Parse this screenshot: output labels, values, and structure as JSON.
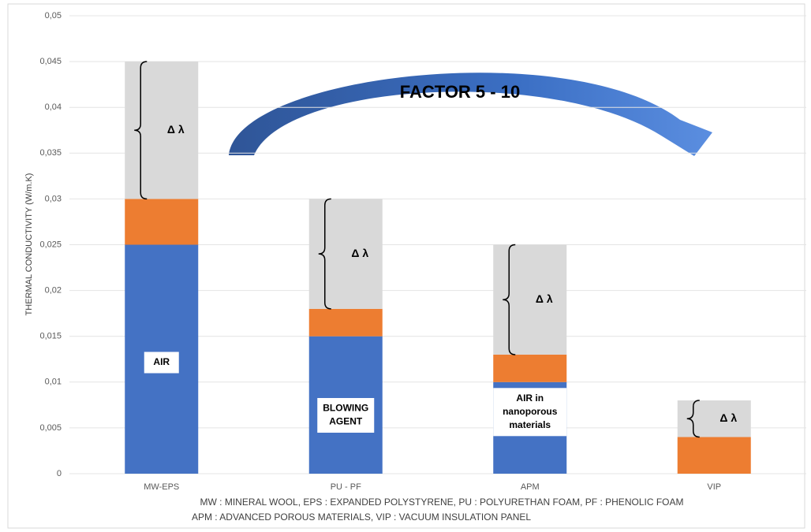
{
  "chart_data": {
    "type": "stacked_bar",
    "y_label": "THERMAL CONDUCTIVITY (W/m.K)",
    "categories": [
      "MW-EPS",
      "PU - PF",
      "APM",
      "VIP"
    ],
    "series": [
      {
        "color": "#4472c4",
        "values": [
          0.025,
          0.015,
          0.01,
          0
        ]
      },
      {
        "color": "#ed7d31",
        "values": [
          0.005,
          0.003,
          0.003,
          0.004
        ]
      },
      {
        "color": "#d9d9d9",
        "values": [
          0.015,
          0.012,
          0.012,
          0.004
        ]
      }
    ],
    "ylim": [
      0,
      0.05
    ],
    "yticks": [
      0,
      {
        "value": 0.005,
        "label": "0,005"
      },
      {
        "value": 0.01,
        "label": "0,01"
      },
      {
        "value": 0.015,
        "label": "0,015"
      },
      {
        "value": 0.02,
        "label": "0,02"
      },
      {
        "value": 0.025,
        "label": "0,025"
      },
      {
        "value": 0.03,
        "label": "0,03"
      },
      {
        "value": 0.035,
        "label": "0,035"
      },
      {
        "value": 0.04,
        "label": "0,04"
      },
      {
        "value": 0.045,
        "label": "0,045"
      },
      {
        "value": 0.05,
        "label": "0,05"
      }
    ],
    "grid": true,
    "delta_labels": [
      "Δ λ",
      "Δ λ",
      "Δ λ",
      "Δ λ"
    ],
    "bar_labels": [
      [
        "AIR"
      ],
      [
        "BLOWING",
        "AGENT"
      ],
      [
        "AIR in",
        "nanoporous",
        "materials"
      ],
      null
    ],
    "arrow_label": "FACTOR 5 - 10",
    "footnote": [
      "MW : MINERAL WOOL, EPS : EXPANDED POLYSTYRENE, PU : POLYURETHAN FOAM, PF : PHENOLIC FOAM",
      "APM : ADVANCED POROUS MATERIALS, VIP : VACUUM INSULATION PANEL"
    ]
  }
}
